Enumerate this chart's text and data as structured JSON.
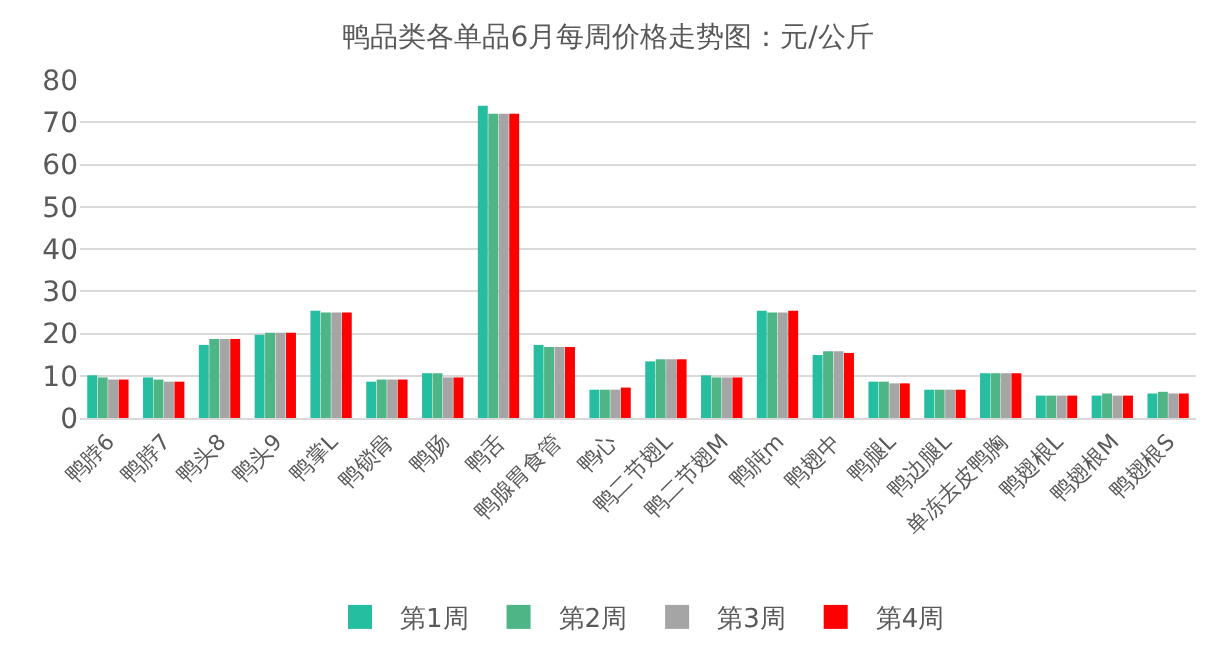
{
  "chart_data": {
    "type": "bar",
    "title": "鸭品类各单品6月每周价格走势图：元/公斤",
    "categories": [
      "鸭脖6",
      "鸭脖7",
      "鸭头8",
      "鸭头9",
      "鸭掌L",
      "鸭锁骨",
      "鸭肠",
      "鸭舌",
      "鸭腺胃食管",
      "鸭心",
      "鸭二节翅L",
      "鸭二节翅M",
      "鸭肫m",
      "鸭翅中",
      "鸭腿L",
      "鸭边腿L",
      "单冻去皮鸭胸",
      "鸭翅根L",
      "鸭翅根M",
      "鸭翅根S"
    ],
    "series": [
      {
        "name": "第1周",
        "color": "#26bea0",
        "values": [
          10.1,
          9.6,
          17.3,
          19.7,
          25.4,
          8.6,
          10.6,
          73.9,
          17.3,
          6.7,
          13.4,
          10.1,
          25.4,
          14.9,
          8.6,
          6.7,
          10.6,
          5.3,
          5.3,
          5.8
        ]
      },
      {
        "name": "第2周",
        "color": "#4db586",
        "values": [
          9.6,
          9.1,
          18.7,
          20.2,
          25,
          9.1,
          10.6,
          72,
          16.8,
          6.7,
          13.9,
          9.6,
          25,
          15.8,
          8.6,
          6.7,
          10.6,
          5.3,
          5.8,
          6.2
        ]
      },
      {
        "name": "第3周",
        "color": "#a5a5a5",
        "values": [
          9.1,
          8.6,
          18.7,
          20.2,
          25,
          9.1,
          9.6,
          72,
          16.8,
          6.7,
          13.9,
          9.6,
          25,
          15.8,
          8.2,
          6.7,
          10.6,
          5.3,
          5.3,
          5.8
        ]
      },
      {
        "name": "第4周",
        "color": "#ff0000",
        "values": [
          9.1,
          8.6,
          18.7,
          20.2,
          25,
          9.1,
          9.6,
          72,
          16.8,
          7.2,
          13.9,
          9.6,
          25.4,
          15.4,
          8.2,
          6.7,
          10.6,
          5.3,
          5.3,
          5.8
        ]
      }
    ],
    "ylim": [
      0,
      80
    ],
    "yticks": [
      0,
      10,
      20,
      30,
      40,
      50,
      60,
      70,
      80
    ],
    "grid": "y",
    "legend": "bottom"
  }
}
